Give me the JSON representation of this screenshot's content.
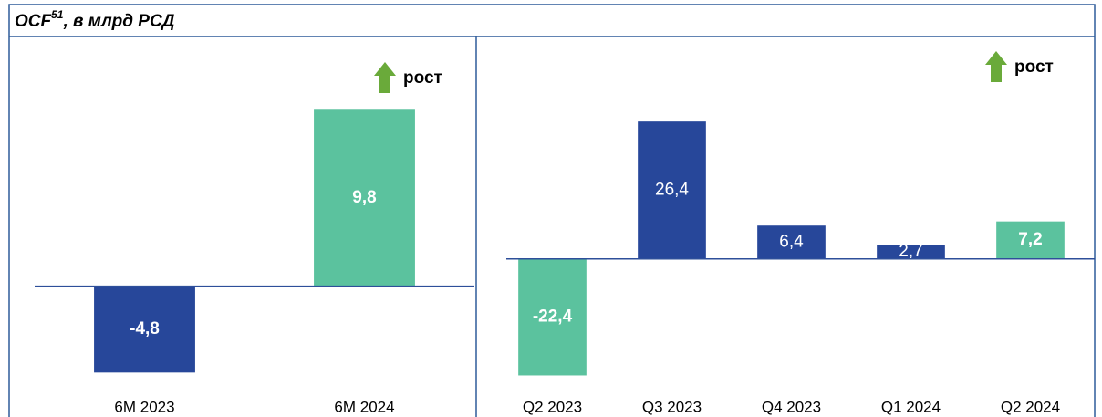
{
  "header": {
    "title": "OCF",
    "footnote": "51",
    "title_rest": ", в млрд РСД"
  },
  "chart_data": [
    {
      "type": "bar",
      "annotation": "рост",
      "categories": [
        "6M 2023",
        "6M 2024"
      ],
      "values": [
        -4.8,
        9.8
      ],
      "value_labels": [
        "-4,8",
        "9,8"
      ],
      "colors": [
        "#27479a",
        "#5bc29e"
      ],
      "ylim": [
        -6,
        12.5
      ]
    },
    {
      "type": "bar",
      "annotation": "рост",
      "categories": [
        "Q2 2023",
        "Q3 2023",
        "Q4 2023",
        "Q1 2024",
        "Q2 2024"
      ],
      "values": [
        -22.4,
        26.4,
        6.4,
        2.7,
        7.2
      ],
      "value_labels": [
        "-22,4",
        "26,4",
        "6,4",
        "2,7",
        "7,2"
      ],
      "colors": [
        "#5bc29e",
        "#27479a",
        "#27479a",
        "#27479a",
        "#5bc29e"
      ],
      "ylim": [
        -26,
        38
      ]
    }
  ]
}
